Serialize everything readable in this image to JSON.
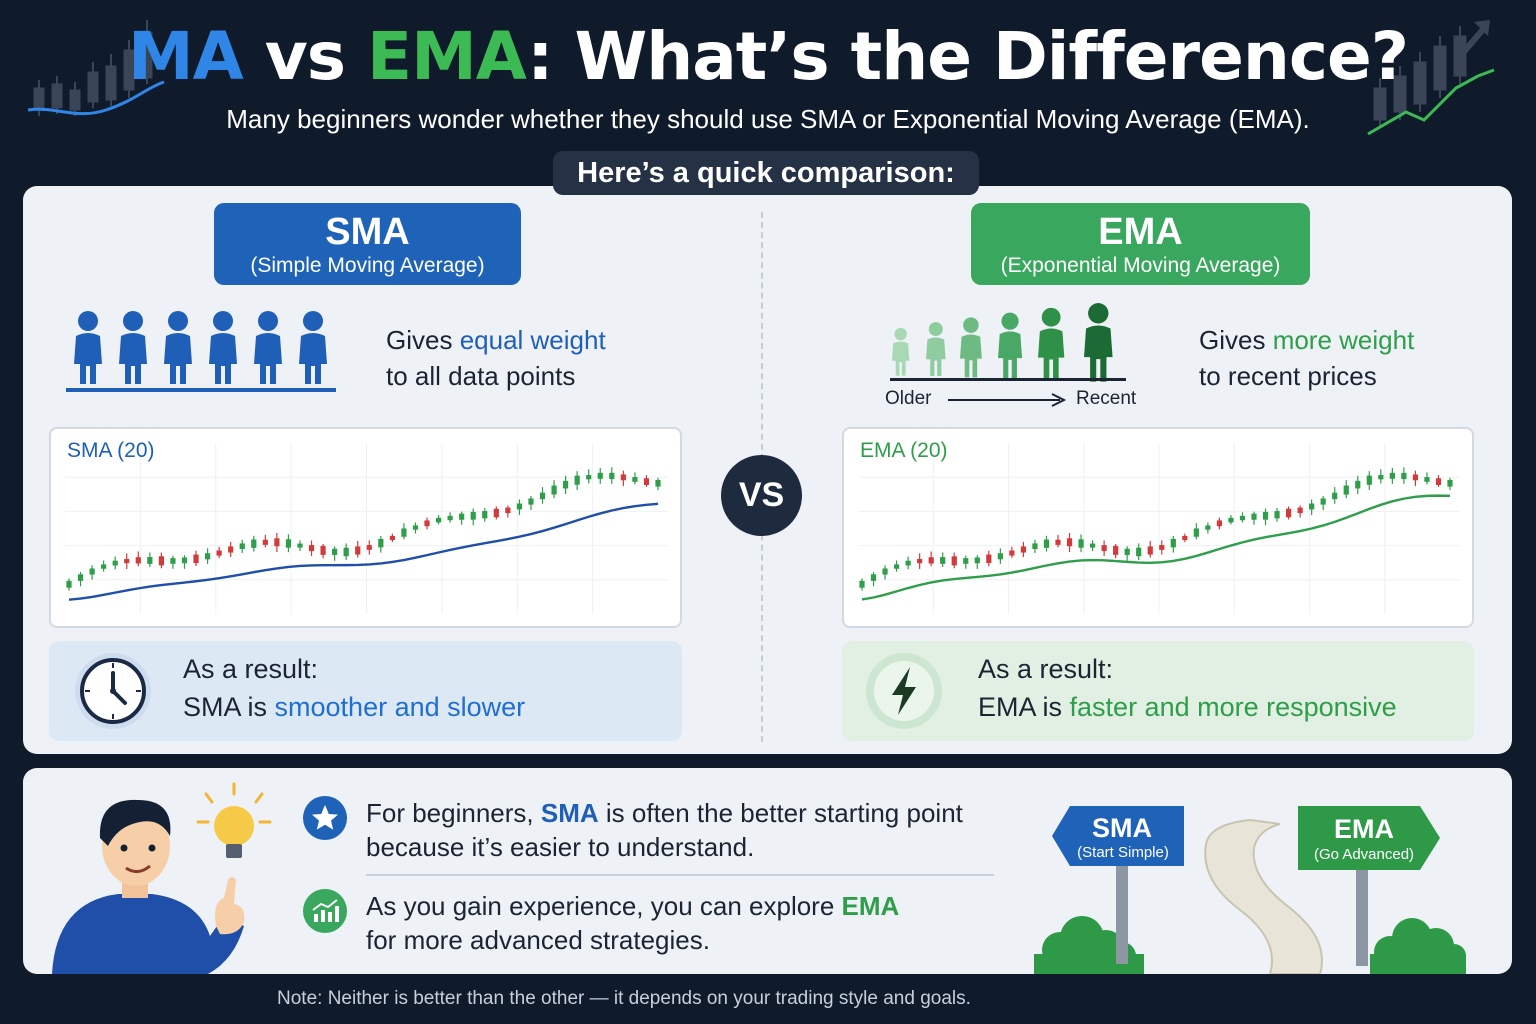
{
  "header": {
    "title_ma": "MA",
    "title_vs": " vs ",
    "title_ema": "EMA",
    "title_rest": ": What’s the Difference?",
    "subtitle": "Many beginners wonder whether they should use SMA or Exponential Moving Average (EMA).",
    "pill": "Here’s a quick comparison:"
  },
  "sma": {
    "badge_title": "SMA",
    "badge_sub": "(Simple Moving Average)",
    "desc_pre": "Gives ",
    "desc_hl": "equal weight",
    "desc_line2": "to all data points",
    "chart_label": "SMA (20)",
    "result_line1": "As a result:",
    "result_pre": "SMA is ",
    "result_hl": "smoother and slower",
    "icon": "clock-icon"
  },
  "ema": {
    "badge_title": "EMA",
    "badge_sub": "(Exponential Moving Average)",
    "desc_pre": "Gives ",
    "desc_hl": "more weight",
    "desc_line2": "to recent prices",
    "scale_older": "Older",
    "scale_recent": "Recent",
    "chart_label": "EMA (20)",
    "result_line1": "As a result:",
    "result_pre": "EMA is ",
    "result_hl": "faster and more responsive",
    "icon": "lightning-icon"
  },
  "vs_label": "VS",
  "tips": {
    "tip1_pre": "For beginners, ",
    "tip1_hl": "SMA",
    "tip1_post": " is often the better starting point",
    "tip1_line2": "because it’s easier to understand.",
    "tip2_pre": "As you gain experience, you can explore ",
    "tip2_hl": "EMA",
    "tip2_line2": "for more advanced strategies."
  },
  "signs": {
    "sma_title": "SMA",
    "sma_sub": "(Start Simple)",
    "ema_title": "EMA",
    "ema_sub": "(Go Advanced)"
  },
  "note": "Note: Neither is better than the other — it depends on your trading style and goals.",
  "colors": {
    "background": "#0f1a2b",
    "sma_blue": "#1f63b8",
    "ema_green": "#3aa75e",
    "candle_up": "#2f9e4a",
    "candle_down": "#d23b3b"
  }
}
